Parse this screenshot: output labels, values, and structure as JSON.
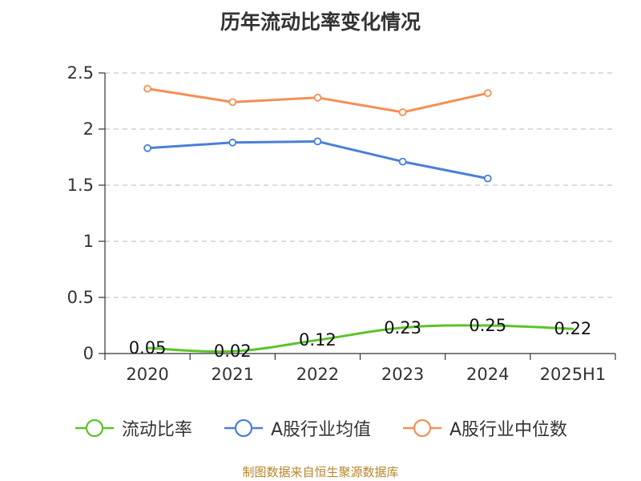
{
  "chart_data": {
    "type": "line",
    "title": "历年流动比率变化情况",
    "categories": [
      "2020",
      "2021",
      "2022",
      "2023",
      "2024",
      "2025H1"
    ],
    "ylim": [
      0,
      2.5
    ],
    "yticks": [
      "0",
      "0.5",
      "1",
      "1.5",
      "2",
      "2.5"
    ],
    "grid": true,
    "legend_position": "bottom",
    "series": [
      {
        "name": "流动比率",
        "color": "#5cc328",
        "values": [
          0.05,
          0.02,
          0.12,
          0.23,
          0.25,
          0.22
        ],
        "labels": [
          "0.05",
          "0.02",
          "0.12",
          "0.23",
          "0.25",
          "0.22"
        ],
        "markers": false
      },
      {
        "name": "A股行业均值",
        "color": "#4a7fd8",
        "values": [
          1.83,
          1.88,
          1.89,
          1.71,
          1.56,
          null
        ],
        "markers": true
      },
      {
        "name": "A股行业中位数",
        "color": "#f58f55",
        "values": [
          2.36,
          2.24,
          2.28,
          2.15,
          2.32,
          null
        ],
        "markers": true
      }
    ]
  },
  "source": "制图数据来自恒生聚源数据库"
}
